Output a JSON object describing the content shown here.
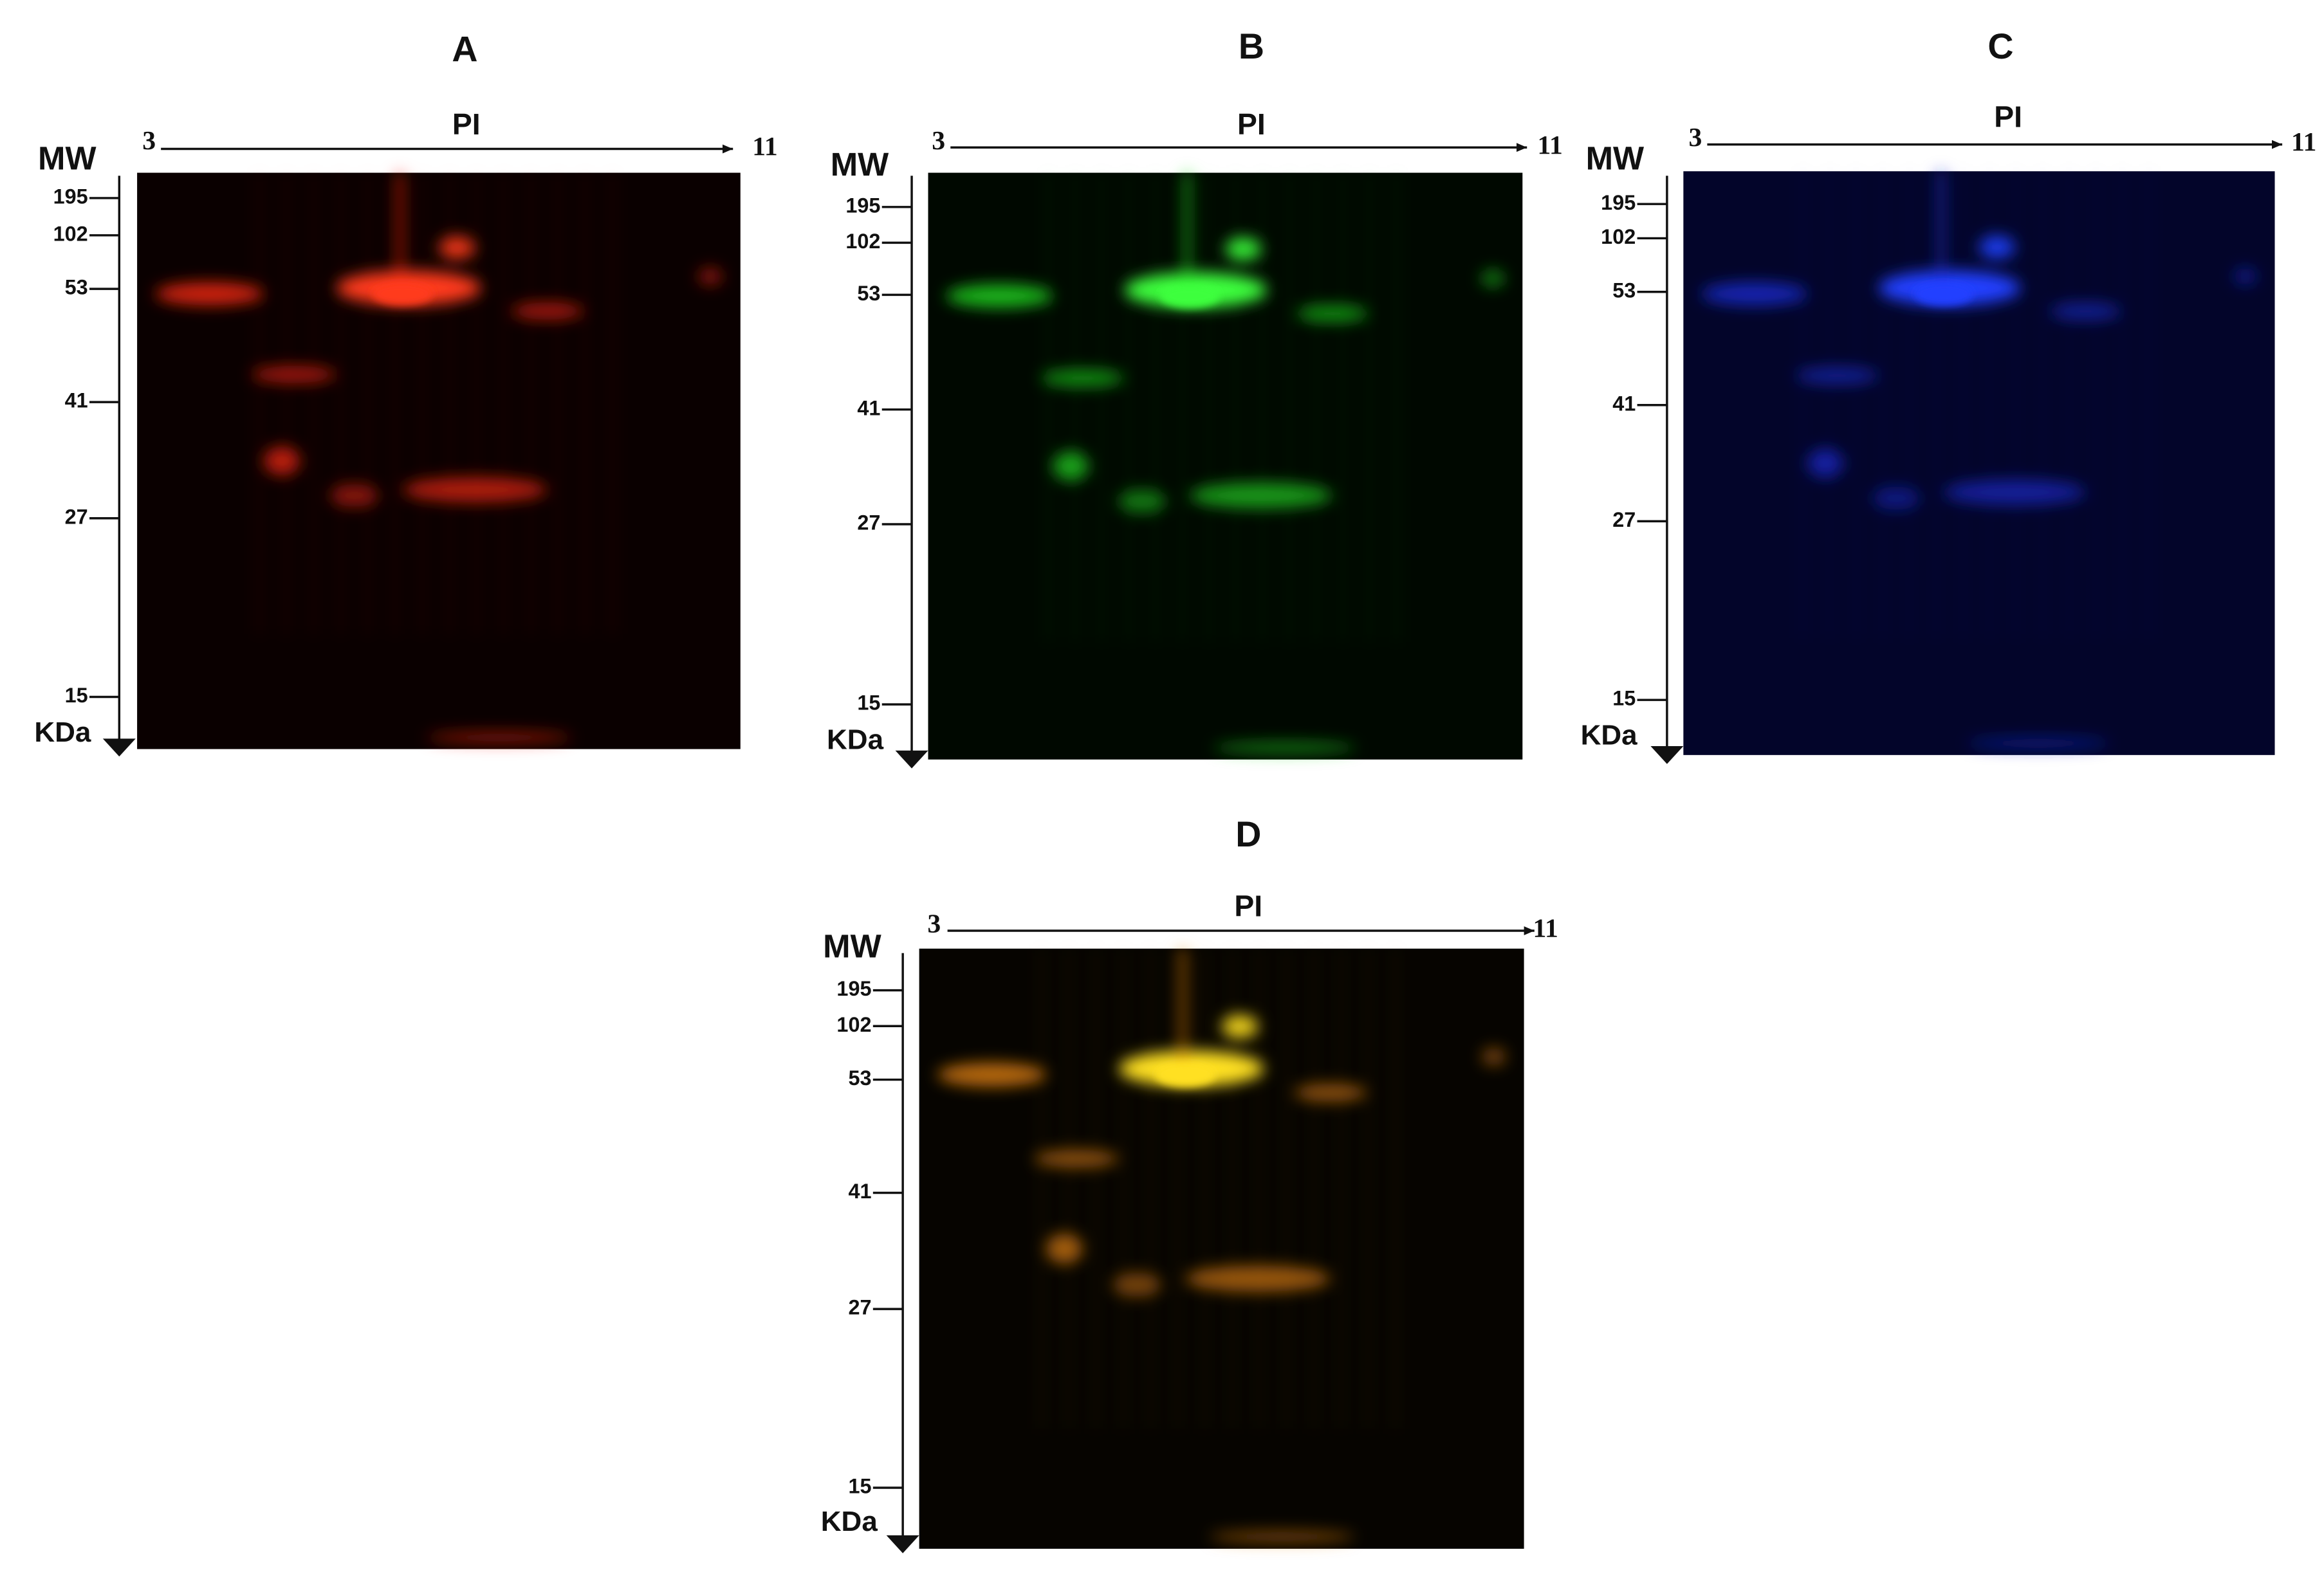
{
  "panels": [
    {
      "title": "A",
      "x_axis_label": "PI",
      "x_start": "3",
      "x_end": "11",
      "y_axis_label": "MW",
      "y_unit": "KDa",
      "y_ticks": [
        "195",
        "102",
        "53",
        "41",
        "27",
        "15"
      ]
    },
    {
      "title": "B",
      "x_axis_label": "PI",
      "x_start": "3",
      "x_end": "11",
      "y_axis_label": "MW",
      "y_unit": "KDa",
      "y_ticks": [
        "195",
        "102",
        "53",
        "41",
        "27",
        "15"
      ]
    },
    {
      "title": "C",
      "x_axis_label": "PI",
      "x_start": "3",
      "x_end": "11",
      "y_axis_label": "MW",
      "y_unit": "KDa",
      "y_ticks": [
        "195",
        "102",
        "53",
        "41",
        "27",
        "15"
      ]
    },
    {
      "title": "D",
      "x_axis_label": "PI",
      "x_start": "3",
      "x_end": "11",
      "y_axis_label": "MW",
      "y_unit": "KDa",
      "y_ticks": [
        "195",
        "102",
        "53",
        "41",
        "27",
        "15"
      ]
    }
  ]
}
